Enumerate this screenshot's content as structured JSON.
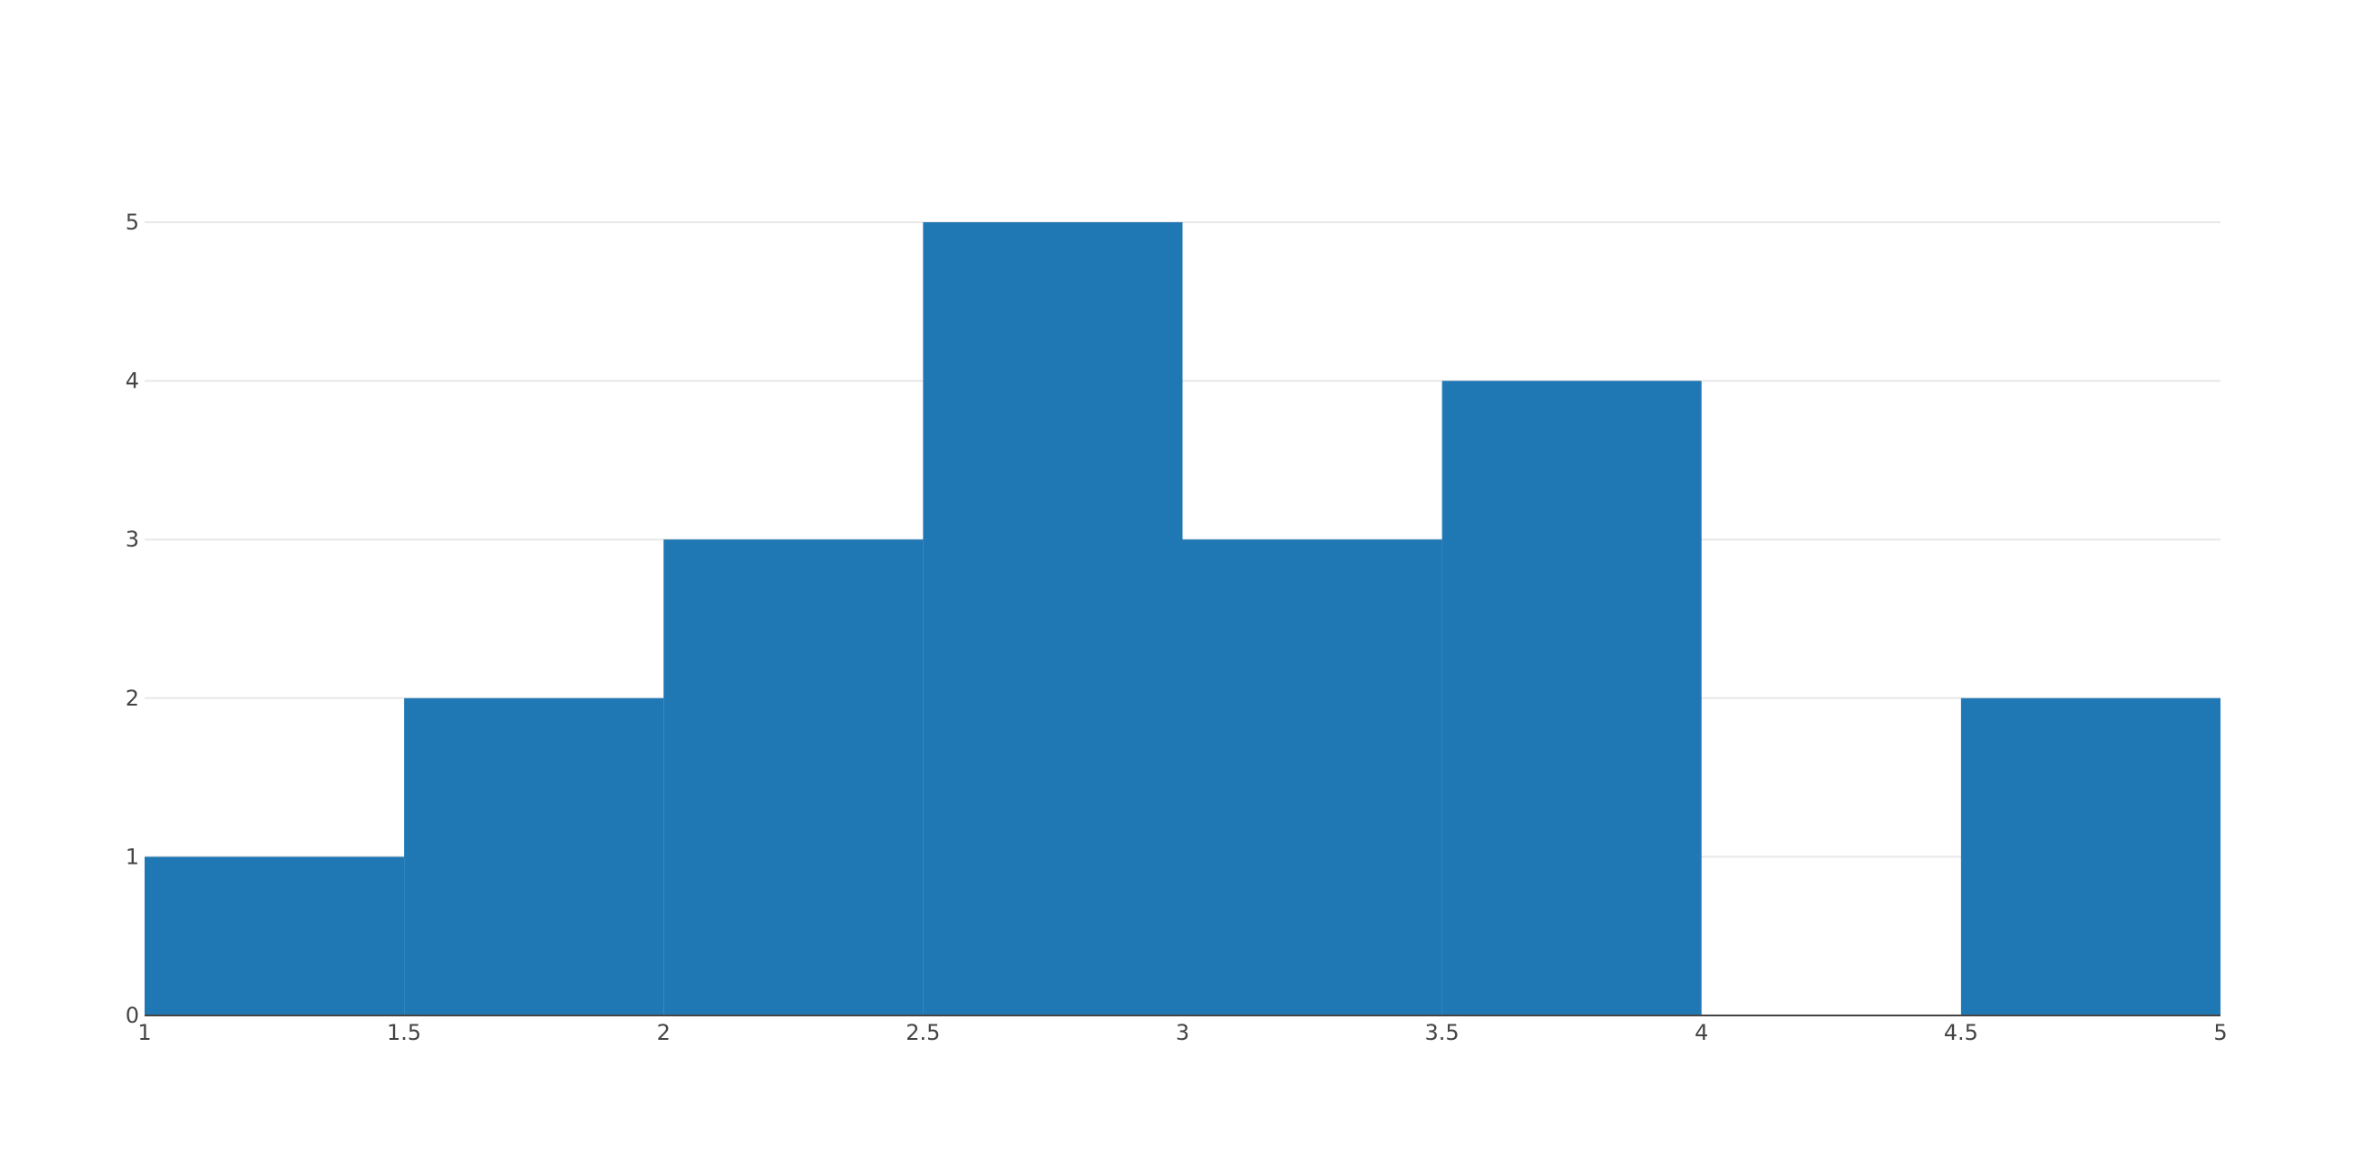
{
  "chart_data": {
    "type": "bar",
    "bins": [
      {
        "x0": 1.0,
        "x1": 1.5,
        "count": 1
      },
      {
        "x0": 1.5,
        "x1": 2.0,
        "count": 2
      },
      {
        "x0": 2.0,
        "x1": 2.5,
        "count": 3
      },
      {
        "x0": 2.5,
        "x1": 3.0,
        "count": 5
      },
      {
        "x0": 3.0,
        "x1": 3.5,
        "count": 3
      },
      {
        "x0": 3.5,
        "x1": 4.0,
        "count": 4
      },
      {
        "x0": 4.0,
        "x1": 4.5,
        "count": 0
      },
      {
        "x0": 4.5,
        "x1": 5.0,
        "count": 2
      }
    ],
    "xlim": [
      1,
      5
    ],
    "ylim": [
      0,
      5
    ],
    "x_ticks": [
      "1",
      "1.5",
      "2",
      "2.5",
      "3",
      "3.5",
      "4",
      "4.5",
      "5"
    ],
    "y_ticks": [
      "0",
      "1",
      "2",
      "3",
      "4",
      "5"
    ],
    "title": "",
    "xlabel": "",
    "ylabel": "",
    "bar_color": "#1f77b4",
    "grid": true,
    "legend": false
  }
}
